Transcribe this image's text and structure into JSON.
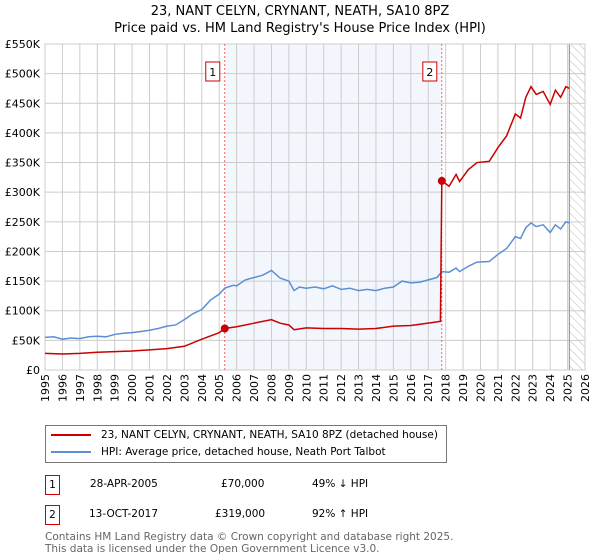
{
  "chart_data": {
    "type": "line",
    "title": "23, NANT CELYN, CRYNANT, NEATH, SA10 8PZ",
    "subtitle": "Price paid vs. HM Land Registry's House Price Index (HPI)",
    "xlim": [
      1995,
      2026
    ],
    "ylim": [
      0,
      550000
    ],
    "xticks": [
      "1995",
      "1996",
      "1997",
      "1998",
      "1999",
      "2000",
      "2001",
      "2002",
      "2003",
      "2004",
      "2005",
      "2006",
      "2007",
      "2008",
      "2009",
      "2010",
      "2011",
      "2012",
      "2013",
      "2014",
      "2015",
      "2016",
      "2017",
      "2018",
      "2019",
      "2020",
      "2021",
      "2022",
      "2023",
      "2024",
      "2025",
      "2026"
    ],
    "yticks": [
      {
        "v": 0,
        "label": "£0"
      },
      {
        "v": 50000,
        "label": "£50K"
      },
      {
        "v": 100000,
        "label": "£100K"
      },
      {
        "v": 150000,
        "label": "£150K"
      },
      {
        "v": 200000,
        "label": "£200K"
      },
      {
        "v": 250000,
        "label": "£250K"
      },
      {
        "v": 300000,
        "label": "£300K"
      },
      {
        "v": 350000,
        "label": "£350K"
      },
      {
        "v": 400000,
        "label": "£400K"
      },
      {
        "v": 450000,
        "label": "£450K"
      },
      {
        "v": 500000,
        "label": "£500K"
      },
      {
        "v": 550000,
        "label": "£550K"
      }
    ],
    "grid": true,
    "shaded_range": [
      2005.32,
      2017.78
    ],
    "forecast_from": 2025.1,
    "series": [
      {
        "name": "23, NANT CELYN, CRYNANT, NEATH, SA10 8PZ (detached house)",
        "color": "#cc0000",
        "points": [
          [
            1995,
            28
          ],
          [
            1996,
            27
          ],
          [
            1997,
            28
          ],
          [
            1998,
            30
          ],
          [
            1999,
            31
          ],
          [
            2000,
            32
          ],
          [
            2001,
            34
          ],
          [
            2002,
            36
          ],
          [
            2003,
            40
          ],
          [
            2004,
            52
          ],
          [
            2005,
            63
          ],
          [
            2005.32,
            70
          ],
          [
            2006,
            73
          ],
          [
            2007,
            79
          ],
          [
            2008,
            85
          ],
          [
            2008.5,
            79
          ],
          [
            2009,
            76
          ],
          [
            2009.3,
            68
          ],
          [
            2010,
            71
          ],
          [
            2011,
            70
          ],
          [
            2012,
            70
          ],
          [
            2013,
            69
          ],
          [
            2014,
            70
          ],
          [
            2015,
            74
          ],
          [
            2016,
            75
          ],
          [
            2017,
            79
          ],
          [
            2017.7,
            82
          ],
          [
            2017.78,
            319
          ],
          [
            2018.2,
            310
          ],
          [
            2018.6,
            330
          ],
          [
            2018.8,
            318
          ],
          [
            2019.3,
            338
          ],
          [
            2019.8,
            350
          ],
          [
            2020.5,
            352
          ],
          [
            2021,
            375
          ],
          [
            2021.5,
            395
          ],
          [
            2022,
            432
          ],
          [
            2022.3,
            425
          ],
          [
            2022.6,
            460
          ],
          [
            2022.9,
            478
          ],
          [
            2023.2,
            465
          ],
          [
            2023.6,
            470
          ],
          [
            2024,
            448
          ],
          [
            2024.3,
            472
          ],
          [
            2024.6,
            460
          ],
          [
            2024.9,
            478
          ],
          [
            2025.1,
            475
          ]
        ]
      },
      {
        "name": "HPI: Average price, detached house, Neath Port Talbot",
        "color": "#5b8fd4",
        "points": [
          [
            1995,
            55
          ],
          [
            1995.5,
            56
          ],
          [
            1996,
            52
          ],
          [
            1996.5,
            54
          ],
          [
            1997,
            53
          ],
          [
            1997.5,
            56
          ],
          [
            1998,
            57
          ],
          [
            1998.5,
            56
          ],
          [
            1999,
            60
          ],
          [
            1999.5,
            62
          ],
          [
            2000,
            63
          ],
          [
            2000.5,
            65
          ],
          [
            2001,
            67
          ],
          [
            2001.5,
            70
          ],
          [
            2002,
            74
          ],
          [
            2002.5,
            76
          ],
          [
            2003,
            85
          ],
          [
            2003.5,
            95
          ],
          [
            2004,
            102
          ],
          [
            2004.5,
            118
          ],
          [
            2005,
            128
          ],
          [
            2005.32,
            138
          ],
          [
            2005.8,
            143
          ],
          [
            2006,
            142
          ],
          [
            2006.5,
            152
          ],
          [
            2007,
            156
          ],
          [
            2007.5,
            160
          ],
          [
            2008,
            168
          ],
          [
            2008.5,
            155
          ],
          [
            2009,
            150
          ],
          [
            2009.3,
            134
          ],
          [
            2009.6,
            140
          ],
          [
            2010,
            138
          ],
          [
            2010.5,
            140
          ],
          [
            2011,
            137
          ],
          [
            2011.5,
            142
          ],
          [
            2012,
            136
          ],
          [
            2012.5,
            138
          ],
          [
            2013,
            134
          ],
          [
            2013.5,
            136
          ],
          [
            2014,
            134
          ],
          [
            2014.5,
            138
          ],
          [
            2015,
            140
          ],
          [
            2015.5,
            150
          ],
          [
            2016,
            147
          ],
          [
            2016.5,
            148
          ],
          [
            2017,
            152
          ],
          [
            2017.5,
            156
          ],
          [
            2017.78,
            166
          ],
          [
            2018.2,
            165
          ],
          [
            2018.6,
            172
          ],
          [
            2018.8,
            166
          ],
          [
            2019.3,
            175
          ],
          [
            2019.8,
            182
          ],
          [
            2020.5,
            183
          ],
          [
            2021,
            195
          ],
          [
            2021.5,
            205
          ],
          [
            2022,
            225
          ],
          [
            2022.3,
            222
          ],
          [
            2022.6,
            240
          ],
          [
            2022.9,
            248
          ],
          [
            2023.2,
            242
          ],
          [
            2023.6,
            245
          ],
          [
            2024,
            232
          ],
          [
            2024.3,
            245
          ],
          [
            2024.6,
            238
          ],
          [
            2024.9,
            250
          ],
          [
            2025.1,
            248
          ]
        ]
      }
    ],
    "sales": [
      {
        "label": "1",
        "x": 2005.32,
        "y": 70
      },
      {
        "label": "2",
        "x": 2017.78,
        "y": 319
      }
    ]
  },
  "transactions": [
    {
      "num": "1",
      "date": "28-APR-2005",
      "price": "£70,000",
      "hpi": "49% ↓ HPI"
    },
    {
      "num": "2",
      "date": "13-OCT-2017",
      "price": "£319,000",
      "hpi": "92% ↑ HPI"
    }
  ],
  "footer": {
    "line1": "Contains HM Land Registry data © Crown copyright and database right 2025.",
    "line2": "This data is licensed under the Open Government Licence v3.0."
  }
}
